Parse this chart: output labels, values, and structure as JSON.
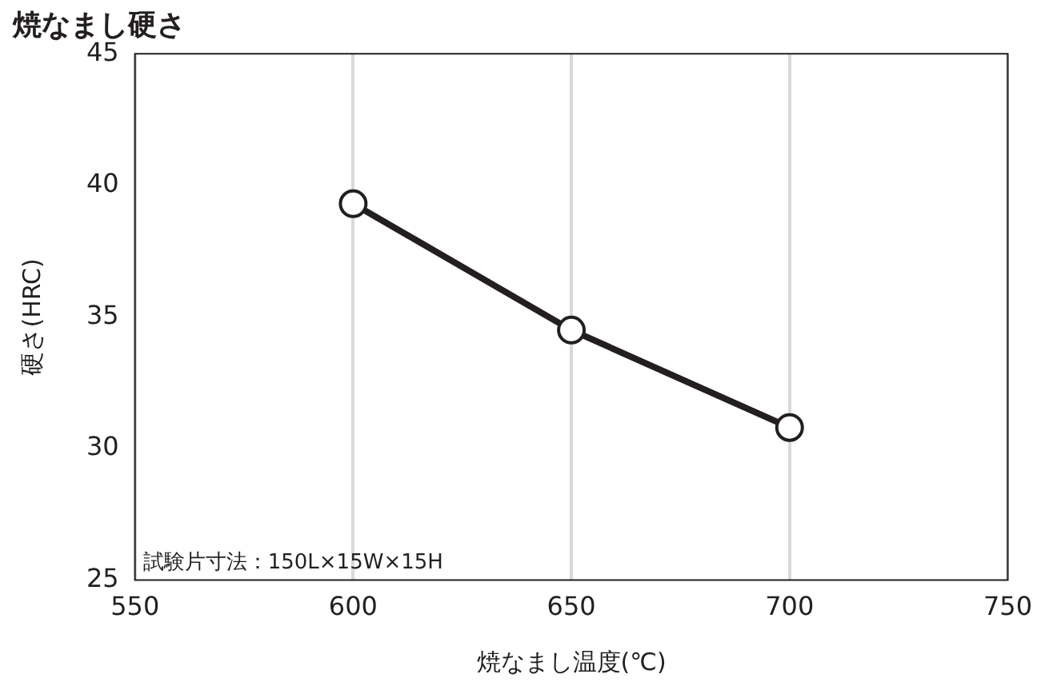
{
  "chart_data": {
    "type": "line",
    "title": "焼なまし硬さ",
    "xlabel": "焼なまし温度(℃)",
    "ylabel": "硬さ(HRC)",
    "x": [
      600,
      650,
      700
    ],
    "series": [
      {
        "color": "#231f20",
        "values": [
          39.3,
          34.5,
          30.8
        ]
      }
    ],
    "xlim": [
      550,
      750
    ],
    "xticks": [
      550,
      600,
      650,
      700,
      750
    ],
    "ylim": [
      25,
      45
    ],
    "yticks": [
      25,
      30,
      35,
      40,
      45
    ],
    "grid": "x",
    "legend": false,
    "marker": "circle",
    "line_style": "solid",
    "annotations": [
      "試験片寸法：150L×15W×15H"
    ]
  }
}
